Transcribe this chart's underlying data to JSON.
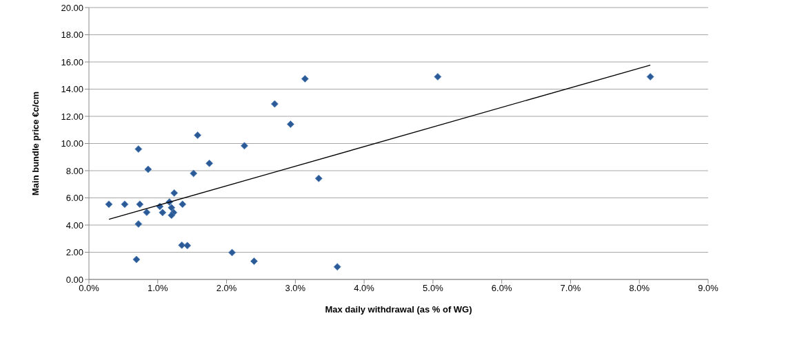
{
  "chart_data": {
    "type": "scatter",
    "xlabel": "Max daily withdrawal (as % of WG)",
    "ylabel": "Main bundle price €c/cm",
    "xlim": [
      0,
      9
    ],
    "xticks": [
      {
        "value": 0,
        "label": "0.0%"
      },
      {
        "value": 1,
        "label": "1.0%"
      },
      {
        "value": 2,
        "label": "2.0%"
      },
      {
        "value": 3,
        "label": "3.0%"
      },
      {
        "value": 4,
        "label": "4.0%"
      },
      {
        "value": 5,
        "label": "5.0%"
      },
      {
        "value": 6,
        "label": "6.0%"
      },
      {
        "value": 7,
        "label": "7.0%"
      },
      {
        "value": 8,
        "label": "8.0%"
      },
      {
        "value": 9,
        "label": "9.0%"
      }
    ],
    "ylim": [
      0,
      20
    ],
    "yticks": [
      {
        "value": 0,
        "label": "0.00"
      },
      {
        "value": 2,
        "label": "2.00"
      },
      {
        "value": 4,
        "label": "4.00"
      },
      {
        "value": 6,
        "label": "6.00"
      },
      {
        "value": 8,
        "label": "8.00"
      },
      {
        "value": 10,
        "label": "10.00"
      },
      {
        "value": 12,
        "label": "12.00"
      },
      {
        "value": 14,
        "label": "14.00"
      },
      {
        "value": 16,
        "label": "16.00"
      },
      {
        "value": 18,
        "label": "18.00"
      },
      {
        "value": 20,
        "label": "20.00"
      }
    ],
    "grid": "y",
    "legend": false,
    "marker": "diamond",
    "series": [
      {
        "type": "scatter",
        "color": "#2b5a96",
        "x": [
          0.29,
          0.52,
          0.74,
          0.72,
          0.69,
          0.72,
          0.86,
          0.84,
          1.03,
          1.07,
          1.17,
          1.2,
          1.23,
          1.2,
          1.24,
          1.36,
          1.35,
          1.43,
          1.52,
          1.75,
          2.08,
          2.4,
          1.58,
          2.26,
          2.7,
          2.93,
          3.14,
          3.34,
          3.61,
          5.07,
          8.16
        ],
        "values": [
          5.53,
          5.53,
          5.53,
          4.08,
          1.47,
          9.59,
          8.1,
          4.94,
          5.37,
          4.92,
          5.7,
          5.28,
          4.92,
          4.72,
          6.36,
          5.53,
          2.52,
          2.49,
          7.8,
          8.54,
          1.98,
          1.34,
          10.61,
          9.83,
          12.91,
          11.42,
          14.76,
          7.43,
          0.93,
          14.91,
          14.91
        ]
      },
      {
        "type": "line",
        "color": "#000000",
        "marker": "none",
        "x": [
          0.29,
          8.16
        ],
        "values": [
          4.42,
          15.77
        ]
      }
    ]
  }
}
